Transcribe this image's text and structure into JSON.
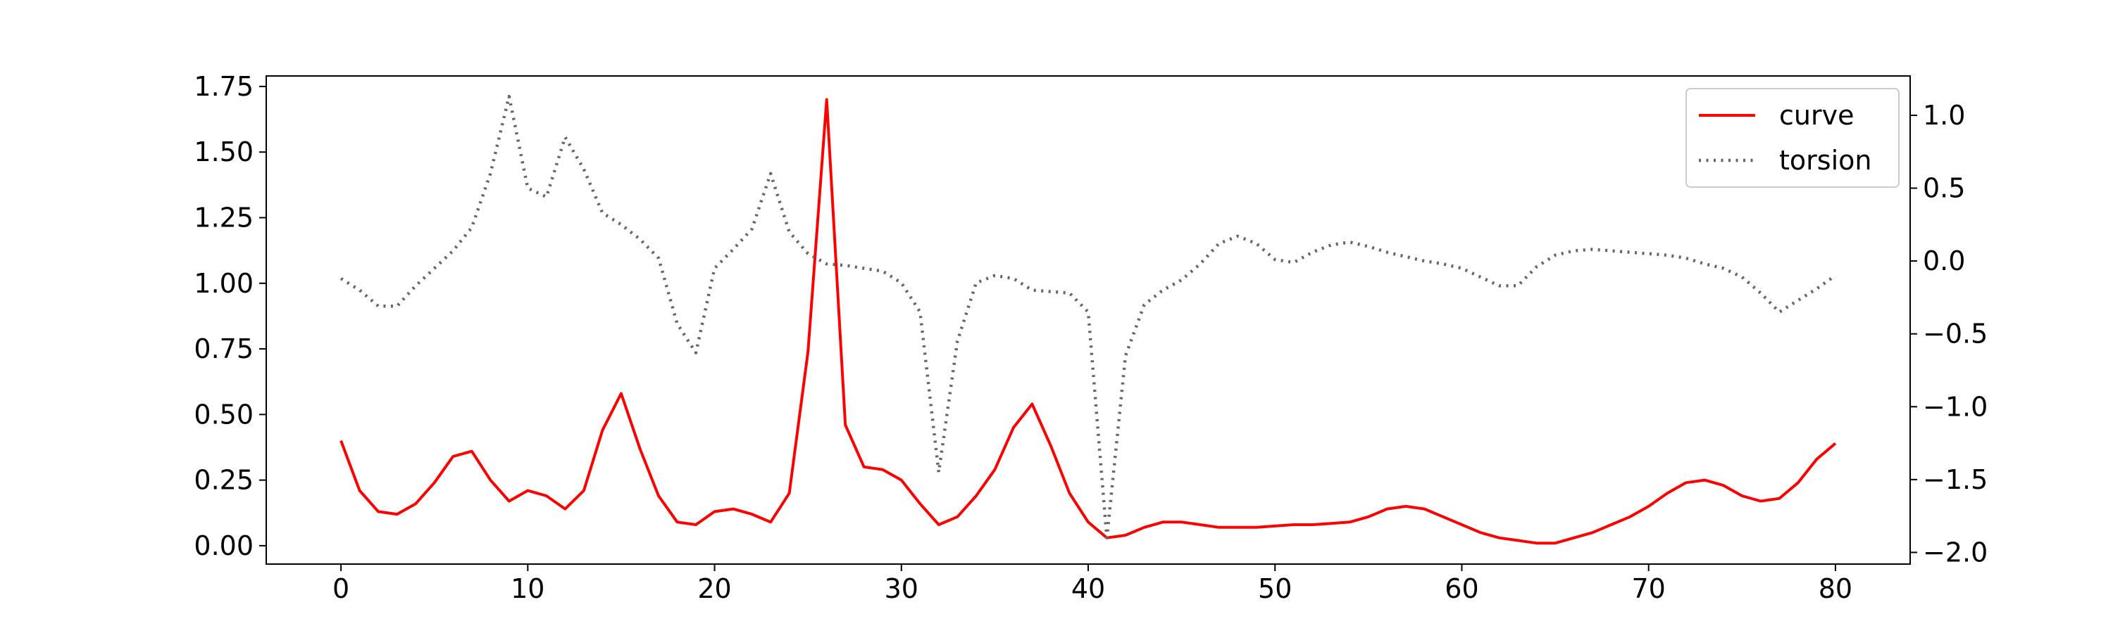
{
  "chart_data": {
    "type": "line",
    "title": "",
    "xlabel": "",
    "ylabel": "",
    "y2label": "",
    "xlim": [
      -4,
      84
    ],
    "ylim": [
      -0.07,
      1.79
    ],
    "y2lim": [
      -2.08,
      1.27
    ],
    "grid": false,
    "legend_position": "upper-right",
    "x_ticks": [
      0,
      10,
      20,
      30,
      40,
      50,
      60,
      70,
      80
    ],
    "x_tick_labels": [
      "0",
      "10",
      "20",
      "30",
      "40",
      "50",
      "60",
      "70",
      "80"
    ],
    "y_ticks": [
      0.0,
      0.25,
      0.5,
      0.75,
      1.0,
      1.25,
      1.5,
      1.75
    ],
    "y_tick_labels": [
      "0.00",
      "0.25",
      "0.50",
      "0.75",
      "1.00",
      "1.25",
      "1.50",
      "1.75"
    ],
    "y2_ticks": [
      -2.0,
      -1.5,
      -1.0,
      -0.5,
      0.0,
      0.5,
      1.0
    ],
    "y2_tick_labels": [
      "−2.0",
      "−1.5",
      "−1.0",
      "−0.5",
      "0.0",
      "0.5",
      "1.0"
    ],
    "series": [
      {
        "name": "curve",
        "axis": "left",
        "color": "#ff0000",
        "style": "solid",
        "x": [
          0,
          1,
          2,
          3,
          4,
          5,
          6,
          7,
          8,
          9,
          10,
          11,
          12,
          13,
          14,
          15,
          16,
          17,
          18,
          19,
          20,
          21,
          22,
          23,
          24,
          25,
          26,
          27,
          28,
          29,
          30,
          31,
          32,
          33,
          34,
          35,
          36,
          37,
          38,
          39,
          40,
          41,
          42,
          43,
          44,
          45,
          46,
          47,
          48,
          49,
          50,
          51,
          52,
          53,
          54,
          55,
          56,
          57,
          58,
          59,
          60,
          61,
          62,
          63,
          64,
          65,
          66,
          67,
          68,
          69,
          70,
          71,
          72,
          73,
          74,
          75,
          76,
          77,
          78,
          79,
          80
        ],
        "values": [
          0.4,
          0.21,
          0.13,
          0.12,
          0.16,
          0.24,
          0.34,
          0.36,
          0.25,
          0.17,
          0.21,
          0.19,
          0.14,
          0.21,
          0.44,
          0.58,
          0.37,
          0.19,
          0.09,
          0.08,
          0.13,
          0.14,
          0.12,
          0.09,
          0.2,
          0.74,
          1.7,
          0.46,
          0.3,
          0.29,
          0.25,
          0.16,
          0.08,
          0.11,
          0.19,
          0.29,
          0.45,
          0.54,
          0.38,
          0.2,
          0.09,
          0.03,
          0.04,
          0.07,
          0.09,
          0.09,
          0.08,
          0.07,
          0.07,
          0.07,
          0.075,
          0.08,
          0.08,
          0.085,
          0.09,
          0.11,
          0.14,
          0.15,
          0.14,
          0.11,
          0.08,
          0.05,
          0.03,
          0.02,
          0.01,
          0.01,
          0.03,
          0.05,
          0.08,
          0.11,
          0.15,
          0.2,
          0.24,
          0.25,
          0.23,
          0.19,
          0.17,
          0.18,
          0.24,
          0.33,
          0.39
        ]
      },
      {
        "name": "torsion",
        "axis": "right",
        "color": "#666666",
        "style": "dotted",
        "x": [
          0,
          1,
          2,
          3,
          4,
          5,
          6,
          7,
          8,
          9,
          10,
          11,
          12,
          13,
          14,
          15,
          16,
          17,
          18,
          19,
          20,
          21,
          22,
          23,
          24,
          25,
          26,
          27,
          28,
          29,
          30,
          31,
          32,
          33,
          34,
          35,
          36,
          37,
          38,
          39,
          40,
          41,
          42,
          43,
          44,
          45,
          46,
          47,
          48,
          49,
          50,
          51,
          52,
          53,
          54,
          55,
          56,
          57,
          58,
          59,
          60,
          61,
          62,
          63,
          64,
          65,
          66,
          67,
          68,
          69,
          70,
          71,
          72,
          73,
          74,
          75,
          76,
          77,
          78,
          79,
          80
        ],
        "values": [
          -0.12,
          -0.2,
          -0.31,
          -0.31,
          -0.17,
          -0.05,
          0.07,
          0.23,
          0.6,
          1.13,
          0.5,
          0.44,
          0.85,
          0.63,
          0.33,
          0.25,
          0.15,
          0.02,
          -0.43,
          -0.63,
          -0.05,
          0.08,
          0.22,
          0.6,
          0.2,
          0.05,
          -0.02,
          -0.03,
          -0.05,
          -0.07,
          -0.15,
          -0.35,
          -1.45,
          -0.55,
          -0.15,
          -0.1,
          -0.12,
          -0.2,
          -0.21,
          -0.22,
          -0.35,
          -1.9,
          -0.65,
          -0.3,
          -0.2,
          -0.13,
          -0.02,
          0.12,
          0.17,
          0.12,
          0.01,
          -0.01,
          0.06,
          0.11,
          0.13,
          0.1,
          0.06,
          0.03,
          0.0,
          -0.02,
          -0.05,
          -0.11,
          -0.17,
          -0.17,
          -0.04,
          0.04,
          0.07,
          0.08,
          0.07,
          0.06,
          0.05,
          0.04,
          0.02,
          -0.02,
          -0.05,
          -0.11,
          -0.22,
          -0.35,
          -0.27,
          -0.19,
          -0.1
        ]
      }
    ]
  }
}
